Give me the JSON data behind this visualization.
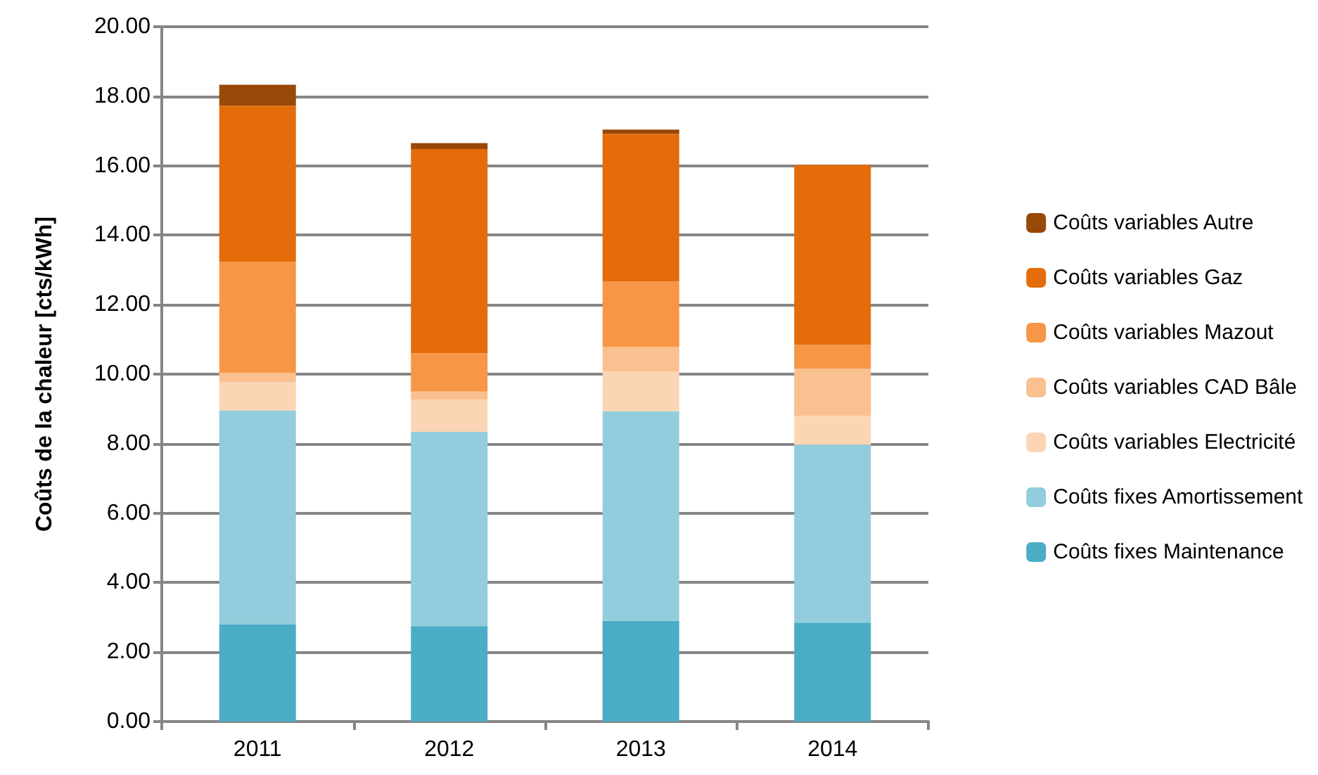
{
  "chart_data": {
    "type": "bar",
    "stacked": true,
    "ylabel": "Coûts de la chaleur [cts/kWh]",
    "categories": [
      "2011",
      "2012",
      "2013",
      "2014"
    ],
    "series": [
      {
        "name": "Coûts fixes Maintenance",
        "color": "#4bacc6",
        "values": [
          2.8,
          2.75,
          2.9,
          2.85
        ]
      },
      {
        "name": "Coûts fixes Amortissement",
        "color": "#93cddd",
        "values": [
          6.15,
          5.59,
          6.03,
          5.12
        ]
      },
      {
        "name": "Coûts variables Electricité",
        "color": "#fcd5b5",
        "values": [
          0.82,
          0.93,
          1.15,
          0.83
        ]
      },
      {
        "name": "Coûts variables CAD Bâle",
        "color": "#fac090",
        "values": [
          0.27,
          0.23,
          0.7,
          1.36
        ]
      },
      {
        "name": "Coûts variables Mazout",
        "color": "#f79646",
        "values": [
          3.2,
          1.1,
          1.88,
          0.68
        ]
      },
      {
        "name": "Coûts variables Gaz",
        "color": "#e46c0a",
        "values": [
          4.49,
          5.88,
          4.26,
          5.18
        ]
      },
      {
        "name": "Coûts variables Autre",
        "color": "#984807",
        "values": [
          0.6,
          0.17,
          0.12,
          0
        ]
      }
    ],
    "ylim": [
      0,
      20
    ],
    "yticks": [
      {
        "value": 0,
        "label": "0.00"
      },
      {
        "value": 2,
        "label": "2.00"
      },
      {
        "value": 4,
        "label": "4.00"
      },
      {
        "value": 6,
        "label": "6.00"
      },
      {
        "value": 8,
        "label": "8.00"
      },
      {
        "value": 10,
        "label": "10.00"
      },
      {
        "value": 12,
        "label": "12.00"
      },
      {
        "value": 14,
        "label": "14.00"
      },
      {
        "value": 16,
        "label": "16.00"
      },
      {
        "value": 18,
        "label": "18.00"
      },
      {
        "value": 20,
        "label": "20.00"
      }
    ],
    "grid": "y",
    "legend": "right"
  }
}
